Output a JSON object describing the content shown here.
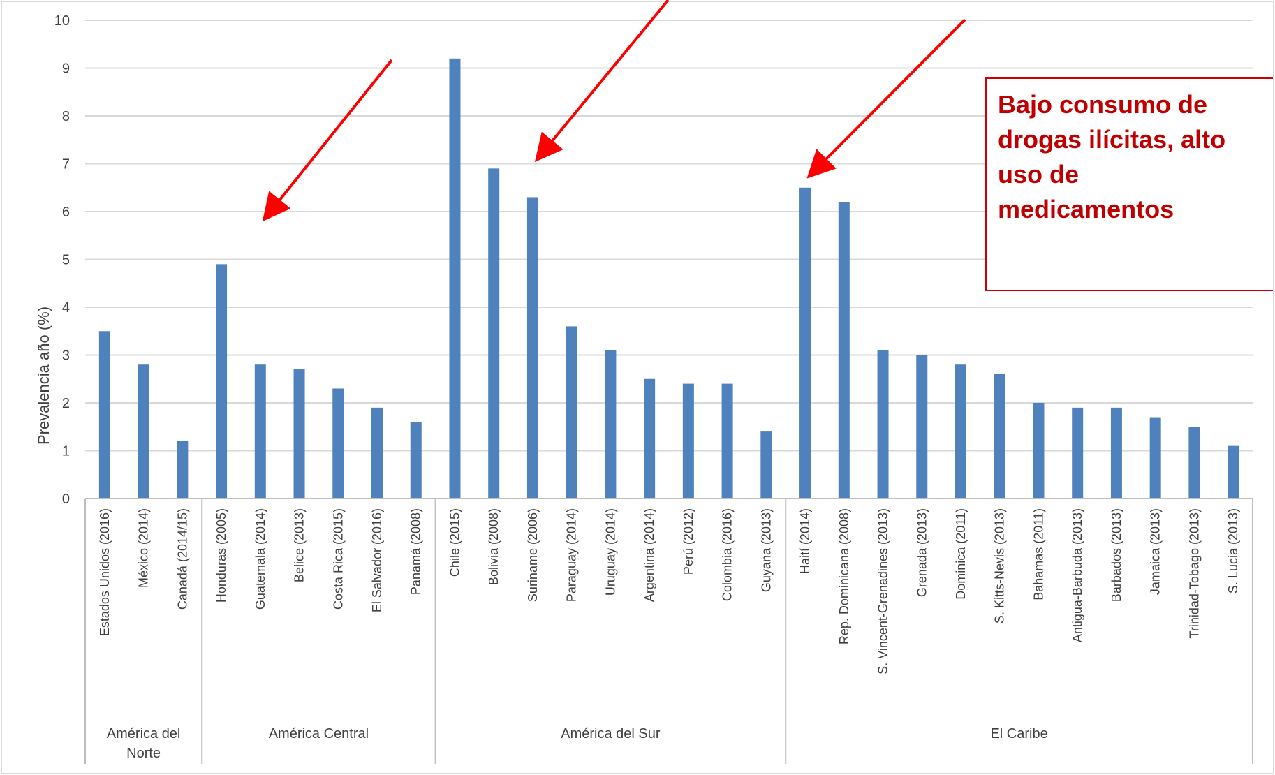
{
  "chart_data": {
    "type": "bar",
    "ylabel": "Prevalencia año (%)",
    "xlabel": "",
    "ylim": [
      0,
      10
    ],
    "yticks": [
      "0",
      "1",
      "2",
      "3",
      "4",
      "5",
      "6",
      "7",
      "8",
      "9",
      "10"
    ],
    "grid": true,
    "bar_color": "#4f81bd",
    "groups": [
      {
        "name": "América del\nNorte",
        "count": 3
      },
      {
        "name": "América Central",
        "count": 6
      },
      {
        "name": "América del Sur",
        "count": 9
      },
      {
        "name": "El Caribe",
        "count": 12
      }
    ],
    "categories": [
      "Estados Unidos (2016)",
      "México (2014)",
      "Canadá (2014/15)",
      "Honduras (2005)",
      "Guatemala (2014)",
      "Belice (2013)",
      "Costa Rica (2015)",
      "El Salvador (2016)",
      "Panamá (2008)",
      "Chile (2015)",
      "Bolivia (2008)",
      "Suriname (2006)",
      "Paraguay (2014)",
      "Uruguay (2014)",
      "Argentina (2014)",
      "Perú (2012)",
      "Colombia (2016)",
      "Guyana (2013)",
      "Haití (2014)",
      "Rep. Dominicana (2008)",
      "S. Vincent-Grenadines (2013)",
      "Grenada (2013)",
      "Dominica (2011)",
      "S. Kitts-Nevis (2013)",
      "Bahamas (2011)",
      "Antigua-Barbuda (2013)",
      "Barbados (2013)",
      "Jamaica (2013)",
      "Trinidad-Tobago (2013)",
      "S. Lucia (2013)"
    ],
    "values": [
      3.5,
      2.8,
      1.2,
      4.9,
      2.8,
      2.7,
      2.3,
      1.9,
      1.6,
      9.2,
      6.9,
      6.3,
      3.6,
      3.1,
      2.5,
      2.4,
      2.4,
      1.4,
      6.5,
      6.2,
      3.1,
      3.0,
      2.8,
      2.6,
      2.0,
      1.9,
      1.9,
      1.7,
      1.5,
      1.1
    ],
    "annotation": "Bajo consumo de\ndrogas ilícitas, alto\nuso de\nmedicamentos",
    "arrow_targets": [
      "Guatemala (2014)",
      "Suriname (2006)",
      "Haití (2014)"
    ],
    "arrow_color": "#ff0000"
  }
}
